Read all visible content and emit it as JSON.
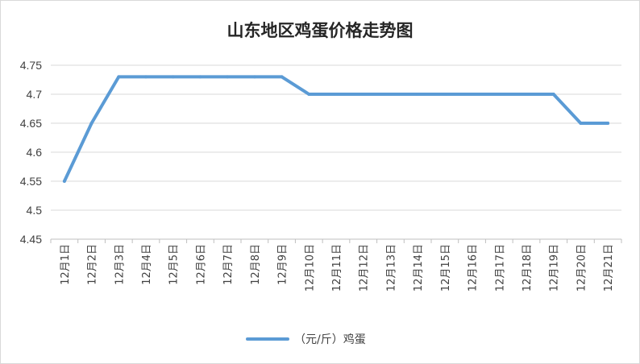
{
  "chart_data": {
    "type": "line",
    "title": "山东地区鸡蛋价格走势图",
    "categories": [
      "12月1日",
      "12月2日",
      "12月3日",
      "12月4日",
      "12月5日",
      "12月6日",
      "12月7日",
      "12月8日",
      "12月9日",
      "12月10日",
      "12月11日",
      "12月12日",
      "12月13日",
      "12月14日",
      "12月15日",
      "12月16日",
      "12月17日",
      "12月18日",
      "12月19日",
      "12月20日",
      "12月21日"
    ],
    "series": [
      {
        "name": "（元/斤）鸡蛋",
        "color": "#5B9BD5",
        "values": [
          4.55,
          4.65,
          4.73,
          4.73,
          4.73,
          4.73,
          4.73,
          4.73,
          4.73,
          4.7,
          4.7,
          4.7,
          4.7,
          4.7,
          4.7,
          4.7,
          4.7,
          4.7,
          4.7,
          4.65,
          4.65
        ]
      }
    ],
    "ylim": [
      4.45,
      4.75
    ],
    "yticks": [
      "4.45",
      "4.5",
      "4.55",
      "4.6",
      "4.65",
      "4.7",
      "4.75"
    ],
    "xlabel": "",
    "ylabel": "",
    "grid": true,
    "legend": "bottom"
  }
}
